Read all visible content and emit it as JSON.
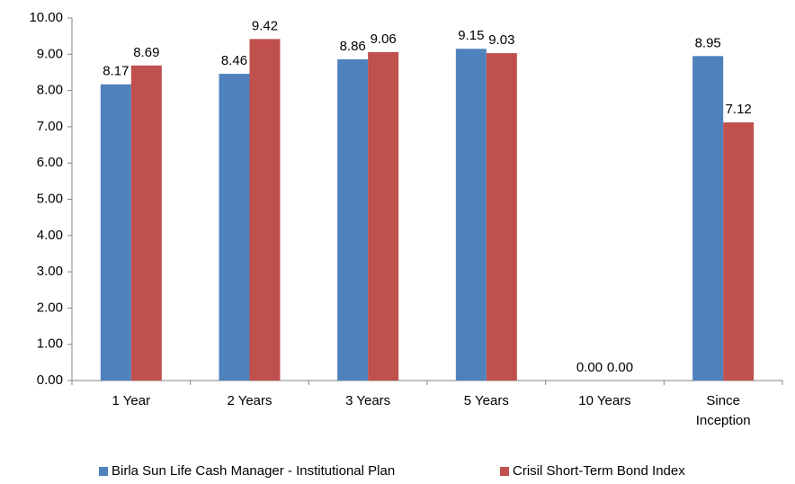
{
  "chart_data": {
    "type": "bar",
    "categories": [
      "1 Year",
      "2 Years",
      "3 Years",
      "5 Years",
      "10 Years",
      "Since Inception"
    ],
    "series": [
      {
        "name": "Birla Sun Life Cash Manager - Institutional Plan",
        "color": "#4f81bd",
        "values": [
          8.17,
          8.46,
          8.86,
          9.15,
          0,
          8.95
        ],
        "value_labels": [
          "8.17",
          "8.46",
          "8.86",
          "9.15",
          "0.00",
          "8.95"
        ]
      },
      {
        "name": "Crisil Short-Term Bond Index",
        "color": "#c0504d",
        "values": [
          8.69,
          9.42,
          9.06,
          9.03,
          0,
          7.12
        ],
        "value_labels": [
          "8.69",
          "9.42",
          "9.06",
          "9.03",
          "0.00",
          "7.12"
        ]
      }
    ],
    "ylim": [
      0,
      10
    ],
    "yticks": [
      {
        "value": 0,
        "label": "0.00"
      },
      {
        "value": 1,
        "label": "1.00"
      },
      {
        "value": 2,
        "label": "2.00"
      },
      {
        "value": 3,
        "label": "3.00"
      },
      {
        "value": 4,
        "label": "4.00"
      },
      {
        "value": 5,
        "label": "5.00"
      },
      {
        "value": 6,
        "label": "6.00"
      },
      {
        "value": 7,
        "label": "7.00"
      },
      {
        "value": 8,
        "label": "8.00"
      },
      {
        "value": 9,
        "label": "9.00"
      },
      {
        "value": 10,
        "label": "10.00"
      }
    ],
    "grid": false,
    "legend": "bottom"
  }
}
